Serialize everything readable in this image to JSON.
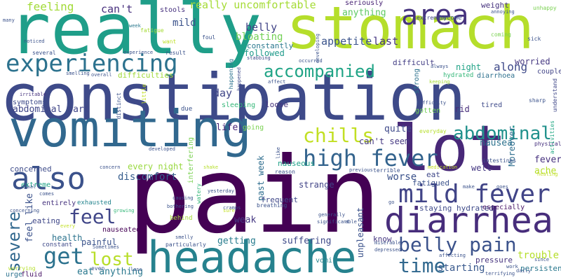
{
  "words": [
    {
      "text": "pain",
      "color": "#440154"
    },
    {
      "text": "constipation",
      "color": "#3e4a89"
    },
    {
      "text": "really",
      "color": "#1f9e89"
    },
    {
      "text": "stomach",
      "color": "#b5de2b"
    },
    {
      "text": "headache",
      "color": "#26828e"
    },
    {
      "text": "vomiting",
      "color": "#31688e"
    },
    {
      "text": "lot",
      "color": "#482878"
    },
    {
      "text": "diarrhea",
      "color": "#472d7b"
    },
    {
      "text": "experiencing",
      "color": "#2c728e"
    },
    {
      "text": "area",
      "color": "#46337e"
    },
    {
      "text": "also",
      "color": "#3b528b"
    },
    {
      "text": "mild fever",
      "color": "#414487"
    },
    {
      "text": "high fever",
      "color": "#33638d"
    },
    {
      "text": "abdominal",
      "color": "#21918c"
    },
    {
      "text": "accompanied",
      "color": "#20a486"
    },
    {
      "text": "chills",
      "color": "#c2df23"
    },
    {
      "text": "belly pain",
      "color": "#3b528b"
    },
    {
      "text": "get",
      "color": "#2c728e"
    },
    {
      "text": "feel",
      "color": "#404688"
    },
    {
      "text": "lost",
      "color": "#b8de29"
    },
    {
      "text": "time",
      "color": "#31688e"
    },
    {
      "text": "severe",
      "color": "#31688e"
    },
    {
      "text": "really uncomfortable",
      "color": "#a5db36"
    },
    {
      "text": "feeling",
      "color": "#a2da37"
    },
    {
      "text": "can't",
      "color": "#472f7d"
    },
    {
      "text": "stools",
      "color": "#46307e"
    },
    {
      "text": "seriously",
      "color": "#482374"
    },
    {
      "text": "weight",
      "color": "#46327e"
    },
    {
      "text": "unhappy",
      "color": "#7ad151"
    },
    {
      "text": "appetite",
      "color": "#3a538b"
    },
    {
      "text": "last",
      "color": "#453581"
    },
    {
      "text": "anything",
      "color": "#5ec962"
    },
    {
      "text": "mild",
      "color": "#3b528b"
    },
    {
      "text": "belly",
      "color": "#414487"
    },
    {
      "text": "bloating",
      "color": "#73d056"
    },
    {
      "text": "constantly",
      "color": "#2a788e"
    },
    {
      "text": "followed",
      "color": "#1f9a8a"
    },
    {
      "text": "night",
      "color": "#20a386"
    },
    {
      "text": "along",
      "color": "#3e4989"
    },
    {
      "text": "worried",
      "color": "#453781"
    },
    {
      "text": "couple",
      "color": "#414487"
    },
    {
      "text": "difficult",
      "color": "#433e85"
    },
    {
      "text": "diarrhoea",
      "color": "#2d708e"
    },
    {
      "text": "difficulties",
      "color": "#a0da39"
    },
    {
      "text": "day",
      "color": "#404688"
    },
    {
      "text": "sleeping",
      "color": "#35b779"
    },
    {
      "text": "loose",
      "color": "#46337e"
    },
    {
      "text": "symptoms",
      "color": "#3e4a89"
    },
    {
      "text": "abdominal part",
      "color": "#404688"
    },
    {
      "text": "life",
      "color": "#482677"
    },
    {
      "text": "going",
      "color": "#7ad151"
    },
    {
      "text": "quite",
      "color": "#3e4989"
    },
    {
      "text": "can't seem",
      "color": "#453882"
    },
    {
      "text": "nausea",
      "color": "#2c728e"
    },
    {
      "text": "fever",
      "color": "#46307e"
    },
    {
      "text": "ache",
      "color": "#b5de2b"
    },
    {
      "text": "every night",
      "color": "#98d83e"
    },
    {
      "text": "nauseous",
      "color": "#1fa088"
    },
    {
      "text": "past week",
      "color": "#2e6d8e"
    },
    {
      "text": "well",
      "color": "#453882"
    },
    {
      "text": "Moreover",
      "color": "#2e6e8e"
    },
    {
      "text": "concerned",
      "color": "#3e4c8a"
    },
    {
      "text": "discomfort",
      "color": "#365d8d"
    },
    {
      "text": "extreme",
      "color": "#20a486"
    },
    {
      "text": "strange",
      "color": "#414487"
    },
    {
      "text": "eating",
      "color": "#3f4788"
    },
    {
      "text": "entirely",
      "color": "#46337e"
    },
    {
      "text": "exhausted",
      "color": "#25848e"
    },
    {
      "text": "weak",
      "color": "#453882"
    },
    {
      "text": "frequent",
      "color": "#3f4788"
    },
    {
      "text": "breathing",
      "color": "#3b528b"
    },
    {
      "text": "health",
      "color": "#2c738e"
    },
    {
      "text": "constant",
      "color": "#3e4989"
    },
    {
      "text": "painful",
      "color": "#3a538b"
    },
    {
      "text": "nauseated",
      "color": "#440154"
    },
    {
      "text": "getting",
      "color": "#287c8e"
    },
    {
      "text": "suffering",
      "color": "#3e4989"
    },
    {
      "text": "unpleasant",
      "color": "#3b528b"
    },
    {
      "text": "know",
      "color": "#453781"
    },
    {
      "text": "worse",
      "color": "#3b528b"
    },
    {
      "text": "eat",
      "color": "#3f4889"
    },
    {
      "text": "eat anything",
      "color": "#2a788e"
    },
    {
      "text": "feel like",
      "color": "#3b528b"
    },
    {
      "text": "starting",
      "color": "#38588c"
    },
    {
      "text": "trouble",
      "color": "#b5de2b"
    },
    {
      "text": "pressure",
      "color": "#46337e"
    },
    {
      "text": "persistent",
      "color": "#2a788e"
    },
    {
      "text": "staying hydrated",
      "color": "#3e4a89"
    },
    {
      "text": "especially",
      "color": "#471365"
    },
    {
      "text": "fatigued",
      "color": "#3b528b"
    },
    {
      "text": "vomit",
      "color": "#25848e"
    },
    {
      "text": "urge",
      "color": "#2c728e"
    },
    {
      "text": "fluid",
      "color": "#471164"
    },
    {
      "text": "worrying",
      "color": "#b5de2b"
    },
    {
      "text": "rid",
      "color": "#472d7b"
    },
    {
      "text": "hydrated",
      "color": "#35b779"
    },
    {
      "text": "tired",
      "color": "#3e4a89"
    },
    {
      "text": "physical",
      "color": "#46307e"
    },
    {
      "text": "activities",
      "color": "#22a884"
    },
    {
      "text": "understand",
      "color": "#3f4788"
    },
    {
      "text": "sharp",
      "color": "#3b528b"
    },
    {
      "text": "extremely",
      "color": "#404688"
    },
    {
      "text": "become",
      "color": "#3b528b"
    },
    {
      "text": "week",
      "color": "#2a788e"
    },
    {
      "text": "fatigue",
      "color": "#a5db36"
    },
    {
      "text": "want",
      "color": "#bddf26"
    },
    {
      "text": "many",
      "color": "#3b528b"
    },
    {
      "text": "noticed",
      "color": "#3b528b"
    },
    {
      "text": "several",
      "color": "#3b528b"
    },
    {
      "text": "smelling",
      "color": "#3b528b"
    },
    {
      "text": "overall",
      "color": "#3b528b"
    },
    {
      "text": "experience",
      "color": "#3b528b"
    },
    {
      "text": "result",
      "color": "#3b528b"
    },
    {
      "text": "irritable",
      "color": "#46337e"
    },
    {
      "text": "stabbing",
      "color": "#3e4a89"
    },
    {
      "text": "occurred",
      "color": "#3b528b"
    },
    {
      "text": "happened",
      "color": "#3e4a89"
    },
    {
      "text": "happening",
      "color": "#2c728e"
    },
    {
      "text": "foul",
      "color": "#3b528b"
    },
    {
      "text": "affect",
      "color": "#3b528b"
    },
    {
      "text": "keeping",
      "color": "#a5db36"
    },
    {
      "text": "strong",
      "color": "#2c728e"
    },
    {
      "text": "always",
      "color": "#3b528b"
    },
    {
      "text": "difficulty",
      "color": "#3b528b"
    },
    {
      "text": "gotten",
      "color": "#73d056"
    },
    {
      "text": "intestines",
      "color": "#3b528b"
    },
    {
      "text": "everyday",
      "color": "#b5de2b"
    },
    {
      "text": "coming",
      "color": "#7ad151"
    },
    {
      "text": "sick",
      "color": "#3b528b"
    },
    {
      "text": "annoying",
      "color": "#3b528b"
    },
    {
      "text": "developing",
      "color": "#3b528b"
    },
    {
      "text": "little",
      "color": "#c2df23"
    },
    {
      "text": "distinct",
      "color": "#3b528b"
    },
    {
      "text": "interfering",
      "color": "#7ad151"
    },
    {
      "text": "developed",
      "color": "#3b528b"
    },
    {
      "text": "due",
      "color": "#3b528b"
    },
    {
      "text": "concern",
      "color": "#3b528b"
    },
    {
      "text": "shake",
      "color": "#b5de2b"
    },
    {
      "text": "previous",
      "color": "#3b528b"
    },
    {
      "text": "terrible",
      "color": "#3b528b"
    },
    {
      "text": "medication",
      "color": "#c2df23"
    },
    {
      "text": "reason",
      "color": "#3b528b"
    },
    {
      "text": "like",
      "color": "#3b528b"
    },
    {
      "text": "watery",
      "color": "#35b779"
    },
    {
      "text": "yesterday",
      "color": "#3b528b"
    },
    {
      "text": "causing",
      "color": "#3b528b"
    },
    {
      "text": "bothering",
      "color": "#3b528b"
    },
    {
      "text": "usual",
      "color": "#3b528b"
    },
    {
      "text": "comes",
      "color": "#3b528b"
    },
    {
      "text": "concerning",
      "color": "#3b528b"
    },
    {
      "text": "growing",
      "color": "#35b779"
    },
    {
      "text": "every",
      "color": "#c2df23"
    },
    {
      "text": "Sometimes",
      "color": "#3b528b"
    },
    {
      "text": "smelly",
      "color": "#3b528b"
    },
    {
      "text": "particularly",
      "color": "#3b528b"
    },
    {
      "text": "cramps",
      "color": "#3b528b"
    },
    {
      "text": "sure",
      "color": "#c2df23"
    },
    {
      "text": "generally",
      "color": "#3b528b"
    },
    {
      "text": "significant",
      "color": "#3b528b"
    },
    {
      "text": "able",
      "color": "#3b528b"
    },
    {
      "text": "miserable",
      "color": "#3b528b"
    },
    {
      "text": "depressed",
      "color": "#3b528b"
    },
    {
      "text": "affecting",
      "color": "#3b528b"
    },
    {
      "text": "go",
      "color": "#3b528b"
    },
    {
      "text": "make",
      "color": "#3b528b"
    },
    {
      "text": "goes",
      "color": "#3b528b"
    },
    {
      "text": "healing",
      "color": "#c2df23"
    },
    {
      "text": "since",
      "color": "#3b528b"
    },
    {
      "text": "work",
      "color": "#3b528b"
    },
    {
      "text": "daily",
      "color": "#3b528b"
    },
    {
      "text": "loss",
      "color": "#3b528b"
    },
    {
      "text": "terrifying",
      "color": "#3b528b"
    },
    {
      "text": "behind",
      "color": "#a5db36"
    },
    {
      "text": "even",
      "color": "#3b528b"
    }
  ]
}
